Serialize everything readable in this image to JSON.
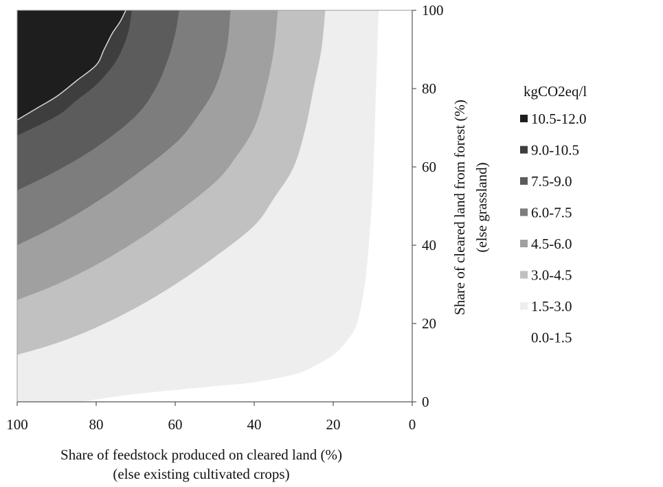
{
  "chart_data": {
    "type": "contour",
    "xlabel_line1": "Share of feedstock produced on cleared land (%)",
    "xlabel_line2": "(else existing cultivated crops)",
    "ylabel_line1": "Share of cleared land from forest (%)",
    "ylabel_line2": "(else grassland)",
    "x_axis": {
      "range": [
        0,
        100
      ],
      "reversed": true,
      "ticks": [
        100,
        80,
        60,
        40,
        20,
        0
      ]
    },
    "y_axis": {
      "range": [
        0,
        100
      ],
      "position": "right",
      "ticks": [
        0,
        20,
        40,
        60,
        80,
        100
      ]
    },
    "legend": {
      "title": "kgCO2eq/l",
      "placement": "right",
      "entries": [
        {
          "label": "10.5-12.0",
          "color": "#1e1e1e",
          "low": 10.5,
          "high": 12.0
        },
        {
          "label": "9.0-10.5",
          "color": "#3e3e3e",
          "low": 9.0,
          "high": 10.5
        },
        {
          "label": "7.5-9.0",
          "color": "#5c5c5c",
          "low": 7.5,
          "high": 9.0
        },
        {
          "label": "6.0-7.5",
          "color": "#7d7d7d",
          "low": 6.0,
          "high": 7.5
        },
        {
          "label": "4.5-6.0",
          "color": "#a0a0a0",
          "low": 4.5,
          "high": 6.0
        },
        {
          "label": "3.0-4.5",
          "color": "#c1c1c1",
          "low": 3.0,
          "high": 4.5
        },
        {
          "label": "1.5-3.0",
          "color": "#eeeeee",
          "low": 1.5,
          "high": 3.0
        },
        {
          "label": "0.0-1.5",
          "color": "#ffffff",
          "low": 0.0,
          "high": 1.5
        }
      ]
    },
    "contours": [
      {
        "value": 1.5,
        "points": [
          [
            84,
            0
          ],
          [
            70,
            2
          ],
          [
            50,
            4
          ],
          [
            40,
            5
          ],
          [
            30,
            7
          ],
          [
            25,
            9
          ],
          [
            20,
            12
          ],
          [
            17,
            15
          ],
          [
            14,
            20
          ],
          [
            12,
            30
          ],
          [
            11,
            40
          ],
          [
            10,
            55
          ],
          [
            9.5,
            70
          ],
          [
            9,
            85
          ],
          [
            8.5,
            100
          ]
        ]
      },
      {
        "value": 3.0,
        "points": [
          [
            100,
            12
          ],
          [
            90,
            15
          ],
          [
            80,
            19
          ],
          [
            70,
            24
          ],
          [
            60,
            30
          ],
          [
            50,
            37
          ],
          [
            40,
            45
          ],
          [
            35,
            52
          ],
          [
            30,
            60
          ],
          [
            27,
            70
          ],
          [
            25,
            80
          ],
          [
            23,
            90
          ],
          [
            22,
            100
          ]
        ]
      },
      {
        "value": 4.5,
        "points": [
          [
            100,
            26
          ],
          [
            90,
            30
          ],
          [
            80,
            35
          ],
          [
            70,
            41
          ],
          [
            60,
            48
          ],
          [
            50,
            56
          ],
          [
            45,
            62
          ],
          [
            40,
            70
          ],
          [
            37,
            80
          ],
          [
            35,
            90
          ],
          [
            34,
            100
          ]
        ]
      },
      {
        "value": 6.0,
        "points": [
          [
            100,
            40
          ],
          [
            90,
            45
          ],
          [
            80,
            51
          ],
          [
            70,
            58
          ],
          [
            60,
            66
          ],
          [
            55,
            72
          ],
          [
            50,
            80
          ],
          [
            47,
            90
          ],
          [
            46,
            100
          ]
        ]
      },
      {
        "value": 7.5,
        "points": [
          [
            100,
            54
          ],
          [
            90,
            59
          ],
          [
            80,
            65
          ],
          [
            70,
            73
          ],
          [
            65,
            80
          ],
          [
            62,
            87
          ],
          [
            60,
            94
          ],
          [
            59,
            100
          ]
        ]
      },
      {
        "value": 9.0,
        "points": [
          [
            100,
            68
          ],
          [
            90,
            73
          ],
          [
            85,
            77
          ],
          [
            80,
            81
          ],
          [
            75,
            87
          ],
          [
            72,
            94
          ],
          [
            71,
            100
          ]
        ]
      },
      {
        "value": 10.5,
        "points": [
          [
            100,
            72
          ],
          [
            95,
            75
          ],
          [
            90,
            78
          ],
          [
            85,
            82
          ],
          [
            80,
            86
          ],
          [
            78,
            90
          ],
          [
            76,
            94
          ],
          [
            74,
            97
          ],
          [
            72.5,
            100
          ]
        ]
      }
    ]
  }
}
